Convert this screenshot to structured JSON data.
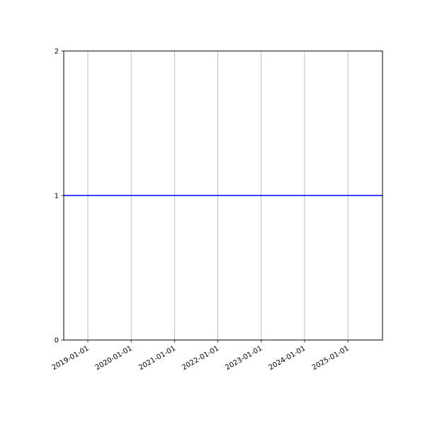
{
  "chart_data": {
    "type": "line",
    "title": "",
    "xlabel": "",
    "ylabel": "",
    "xlim": [
      "2018-06-12",
      "2025-10-19"
    ],
    "ylim": [
      0,
      2
    ],
    "x_ticks": [
      "2019-01-01",
      "2020-01-01",
      "2021-01-01",
      "2022-01-01",
      "2023-01-01",
      "2024-01-01",
      "2025-01-01"
    ],
    "y_ticks": [
      "0",
      "1",
      "2"
    ],
    "grid": "x-axis vertical gridlines",
    "series": [
      {
        "x": [
          "2018-06-12",
          "2025-10-19"
        ],
        "y": [
          1,
          1
        ],
        "color": "#0000ff"
      }
    ],
    "colors": {
      "line": "#0000ff",
      "grid": "#b0b0b0",
      "axes": "#000000"
    }
  }
}
